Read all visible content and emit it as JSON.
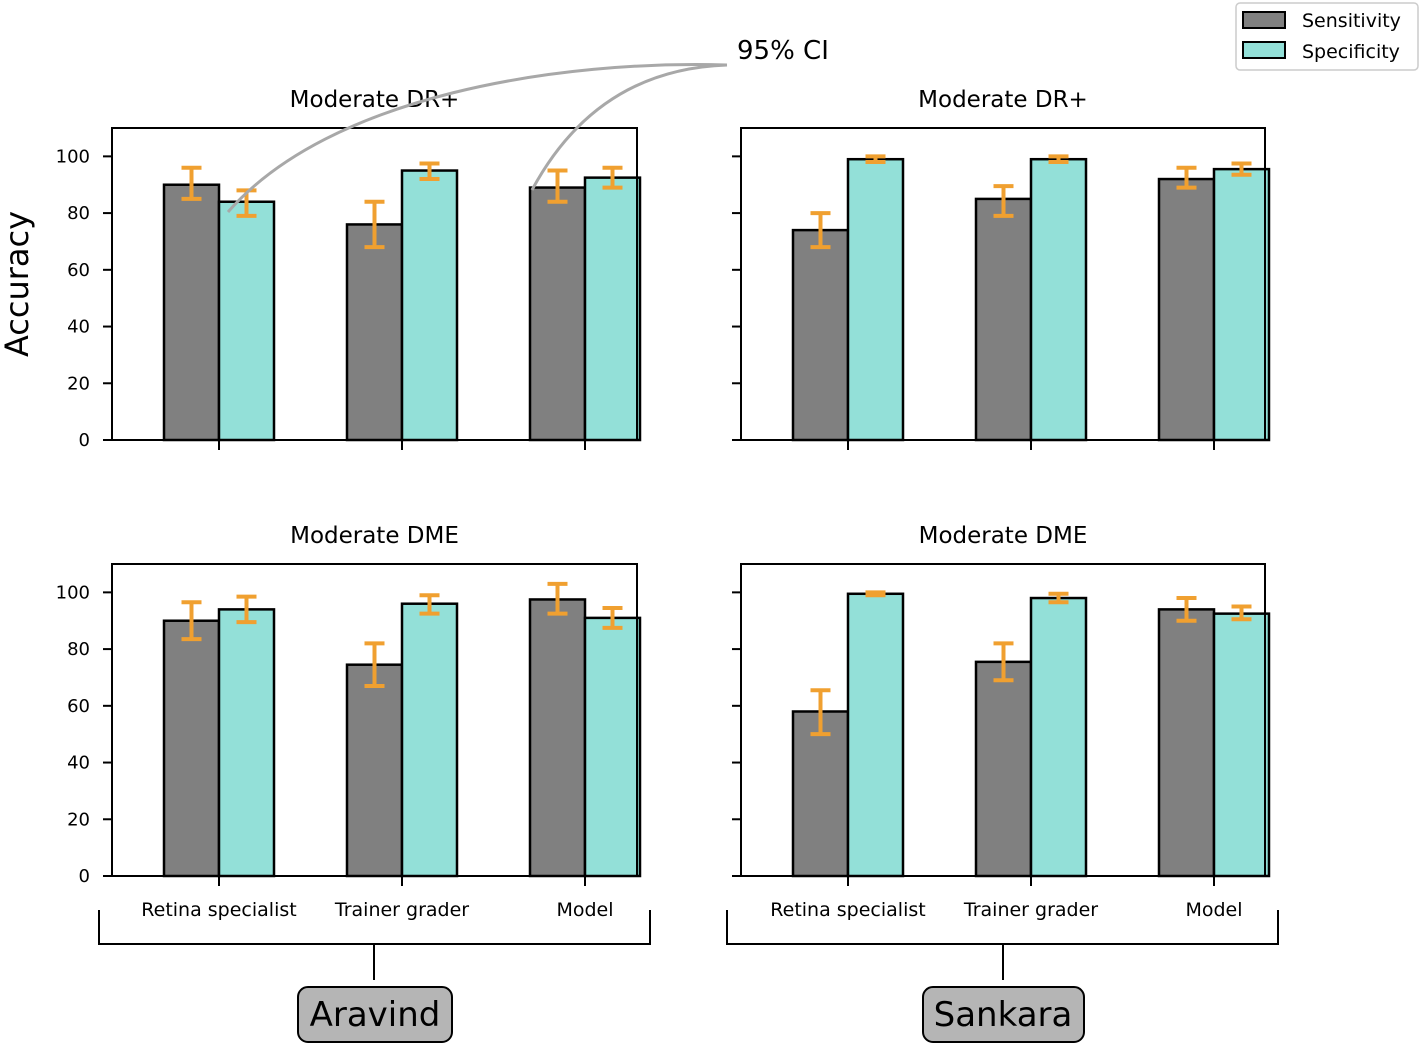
{
  "chart_data": {
    "type": "bar",
    "ylabel": "Accuracy",
    "ylim": [
      0,
      110
    ],
    "yticks": [
      0,
      20,
      40,
      60,
      80,
      100
    ],
    "categories": [
      "Retina specialist",
      "Trainer grader",
      "Model"
    ],
    "legend": {
      "placement": "top-right",
      "entries": [
        "Sensitivity",
        "Specificity"
      ]
    },
    "colors": {
      "Sensitivity": "#808080",
      "Specificity": "#93e0d8",
      "ci": "#f0a030"
    },
    "annotation": "95% CI",
    "sites": [
      "Aravind",
      "Sankara"
    ],
    "panels": [
      {
        "site": "Aravind",
        "title": "Moderate DR+",
        "series": [
          {
            "name": "Sensitivity",
            "values": [
              90,
              76,
              89
            ],
            "ci_low": [
              85,
              68,
              84
            ],
            "ci_high": [
              96,
              84,
              95
            ]
          },
          {
            "name": "Specificity",
            "values": [
              84,
              95,
              92.5
            ],
            "ci_low": [
              79,
              92,
              89
            ],
            "ci_high": [
              88,
              97.5,
              96
            ]
          }
        ]
      },
      {
        "site": "Sankara",
        "title": "Moderate DR+",
        "series": [
          {
            "name": "Sensitivity",
            "values": [
              74,
              85,
              92
            ],
            "ci_low": [
              68,
              79,
              89
            ],
            "ci_high": [
              80,
              89.5,
              96
            ]
          },
          {
            "name": "Specificity",
            "values": [
              99,
              99,
              95.5
            ],
            "ci_low": [
              98,
              98,
              93.5
            ],
            "ci_high": [
              100,
              100,
              97.5
            ]
          }
        ]
      },
      {
        "site": "Aravind",
        "title": "Moderate DME",
        "series": [
          {
            "name": "Sensitivity",
            "values": [
              90,
              74.5,
              97.5
            ],
            "ci_low": [
              83.5,
              67,
              92.5
            ],
            "ci_high": [
              96.5,
              82,
              103
            ]
          },
          {
            "name": "Specificity",
            "values": [
              94,
              96,
              91
            ],
            "ci_low": [
              89.5,
              92.5,
              87.5
            ],
            "ci_high": [
              98.5,
              99,
              94.5
            ]
          }
        ]
      },
      {
        "site": "Sankara",
        "title": "Moderate DME",
        "series": [
          {
            "name": "Sensitivity",
            "values": [
              58,
              75.5,
              94
            ],
            "ci_low": [
              50,
              69,
              90
            ],
            "ci_high": [
              65.5,
              82,
              98
            ]
          },
          {
            "name": "Specificity",
            "values": [
              99.5,
              98,
              92.5
            ],
            "ci_low": [
              99,
              96.5,
              90.5
            ],
            "ci_high": [
              100,
              99.5,
              95
            ]
          }
        ]
      }
    ]
  }
}
